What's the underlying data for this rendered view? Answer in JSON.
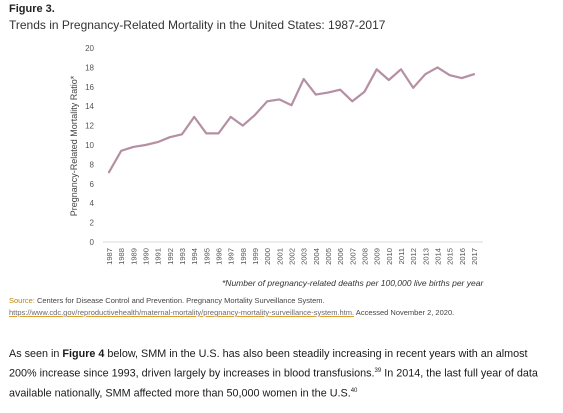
{
  "figure": {
    "label": "Figure 3.",
    "title": "Trends in Pregnancy-Related Mortality in the United States: 1987-2017"
  },
  "chart_data": {
    "type": "line",
    "ylabel": "Pregnancy-Related Mortality Ratio*",
    "xlabel": "",
    "ylim": [
      0,
      20
    ],
    "yticks": [
      "0",
      "2",
      "4",
      "6",
      "8",
      "10",
      "12",
      "14",
      "16",
      "18",
      "20"
    ],
    "categories": [
      "1987",
      "1988",
      "1989",
      "1990",
      "1991",
      "1992",
      "1993",
      "1994",
      "1995",
      "1996",
      "1997",
      "1998",
      "1999",
      "2000",
      "2001",
      "2002",
      "2003",
      "2004",
      "2005",
      "2006",
      "2007",
      "2008",
      "2009",
      "2010",
      "2011",
      "2012",
      "2013",
      "2014",
      "2015",
      "2016",
      "2017"
    ],
    "series": [
      {
        "values": [
          7.2,
          9.4,
          9.8,
          10.0,
          10.3,
          10.8,
          11.1,
          12.9,
          11.2,
          11.2,
          12.9,
          12.0,
          13.1,
          14.5,
          14.7,
          14.1,
          16.8,
          15.2,
          15.4,
          15.7,
          14.5,
          15.5,
          17.8,
          16.7,
          17.8,
          15.9,
          17.3,
          18.0,
          17.2,
          16.9,
          17.3
        ],
        "color": "#b58fa3"
      }
    ],
    "grid": false,
    "legend": "none"
  },
  "footnote": "*Number of pregnancy-related deaths per 100,000 live births per year",
  "source": {
    "label": "Source:",
    "text": " Centers for Disease Control and Prevention. Pregnancy Mortality Surveillance System.",
    "url": "https://www.cdc.gov/reproductivehealth/maternal-mortality/pregnancy-mortality-surveillance-system.htm.",
    "accessed": " Accessed November 2, 2020."
  },
  "body": {
    "p1": "As seen in ",
    "fig_ref": "Figure 4",
    "p2": " below, SMM in the U.S. has also been steadily increasing in recent years with an almost 200% increase since 1993, driven largely by increases in blood transfusions.",
    "ref1": "39",
    "p3": " In 2014, the last full year of data available nationally, SMM affected more than 50,000 women in the U.S.",
    "ref2": "40"
  }
}
